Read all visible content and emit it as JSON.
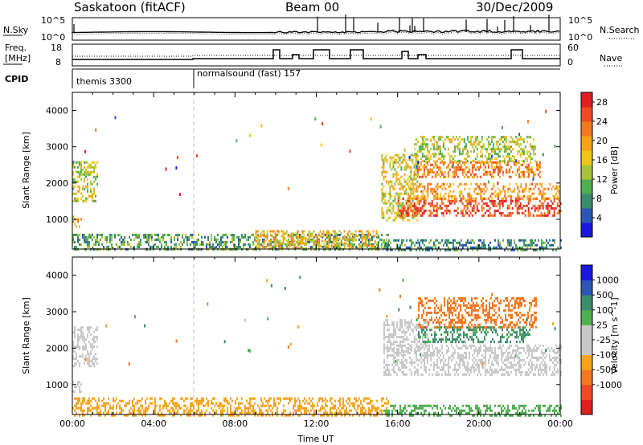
{
  "header": {
    "station": "Saskatoon (fitACF)",
    "beam": "Beam 00",
    "date": "30/Dec/2009"
  },
  "strips": {
    "nsky": {
      "left_label": "N.Sky",
      "left_ticks": [
        "10^5",
        "10^0"
      ],
      "right_label": "N.Search",
      "right_ticks": [
        "10^5",
        "10^0"
      ]
    },
    "freq": {
      "left_label_line1": "Freq.",
      "left_label_line2": "[MHz]",
      "left_ticks": [
        "18",
        "8"
      ],
      "right_label": "Nave",
      "right_ticks": [
        "60",
        "0"
      ]
    },
    "cpid": {
      "label": "CPID",
      "segments": [
        "themis 3300",
        "normalsound (fast) 157"
      ]
    }
  },
  "colors": {
    "power_bar": [
      "#1a1adf",
      "#2a57b5",
      "#3a8c6e",
      "#4fae4f",
      "#a8c33a",
      "#f0c419",
      "#f7a21b",
      "#f5781f",
      "#ef4a22",
      "#e01f1f"
    ],
    "velocity_bar": [
      "#e01f1f",
      "#ef4a22",
      "#f5781f",
      "#f7a21b",
      "#c8c8c8",
      "#c8c8c8",
      "#4fae4f",
      "#3a8c6e",
      "#2a57b5",
      "#1a1adf"
    ],
    "ground_scatter": "#c8c8c8"
  },
  "chart_data": [
    {
      "type": "heatmap",
      "panel": "power",
      "ylabel": "Slant Range [km]",
      "yticks": [
        "1000",
        "2000",
        "3000",
        "4000"
      ],
      "ylim": [
        180,
        4500
      ],
      "xlim": [
        0,
        24
      ],
      "colorbar_label": "Power [dB]",
      "colorbar_ticks": [
        "4",
        "8",
        "12",
        "16",
        "20",
        "24",
        "28"
      ],
      "colorbar_range": [
        0,
        30
      ],
      "regions": [
        {
          "x0": 0.0,
          "x1": 1.2,
          "y0": 1500,
          "y1": 2600,
          "value": 14
        },
        {
          "x0": 0.0,
          "x1": 0.4,
          "y0": 800,
          "y1": 1100,
          "value": 18
        },
        {
          "x0": 0.0,
          "x1": 15.5,
          "y0": 180,
          "y1": 600,
          "value": 10
        },
        {
          "x0": 9.0,
          "x1": 15.0,
          "y0": 180,
          "y1": 700,
          "value": 18
        },
        {
          "x0": 15.3,
          "x1": 24.0,
          "y0": 180,
          "y1": 450,
          "value": 8
        },
        {
          "x0": 15.2,
          "x1": 17.0,
          "y0": 1000,
          "y1": 2800,
          "value": 16
        },
        {
          "x0": 16.0,
          "x1": 24.0,
          "y0": 1100,
          "y1": 1600,
          "value": 26
        },
        {
          "x0": 16.5,
          "x1": 24.0,
          "y0": 1600,
          "y1": 2000,
          "value": 20
        },
        {
          "x0": 16.8,
          "x1": 23.0,
          "y0": 2200,
          "y1": 2600,
          "value": 22
        },
        {
          "x0": 16.8,
          "x1": 22.8,
          "y0": 2600,
          "y1": 3300,
          "value": 14
        }
      ]
    },
    {
      "type": "heatmap",
      "panel": "velocity",
      "ylabel": "Slant Range [km]",
      "yticks": [
        "1000",
        "2000",
        "3000",
        "4000"
      ],
      "ylim": [
        180,
        4500
      ],
      "xlim": [
        0,
        24
      ],
      "xlabel": "Time UT",
      "xticks": [
        "00:00",
        "04:00",
        "08:00",
        "12:00",
        "16:00",
        "20:00",
        "00:00"
      ],
      "colorbar_label": "Velocity [m s^-1]",
      "colorbar_ticks": [
        "1000",
        "500",
        "100",
        "25",
        "-25",
        "-100",
        "-500",
        "-1000"
      ],
      "regions": [
        {
          "x0": 0.0,
          "x1": 1.2,
          "y0": 1500,
          "y1": 2600,
          "value": "ground"
        },
        {
          "x0": 0.0,
          "x1": 0.4,
          "y0": 800,
          "y1": 1100,
          "value": "ground"
        },
        {
          "x0": 0.0,
          "x1": 15.5,
          "y0": 180,
          "y1": 650,
          "value": -50
        },
        {
          "x0": 15.3,
          "x1": 24.0,
          "y0": 1300,
          "y1": 2100,
          "value": "ground"
        },
        {
          "x0": 15.3,
          "x1": 17.5,
          "y0": 1900,
          "y1": 2800,
          "value": "ground"
        },
        {
          "x0": 17.0,
          "x1": 22.5,
          "y0": 2150,
          "y1": 2600,
          "value": 120
        },
        {
          "x0": 17.0,
          "x1": 22.8,
          "y0": 2600,
          "y1": 3400,
          "value": -300
        },
        {
          "x0": 15.3,
          "x1": 24.0,
          "y0": 180,
          "y1": 450,
          "value": 60
        }
      ]
    }
  ]
}
